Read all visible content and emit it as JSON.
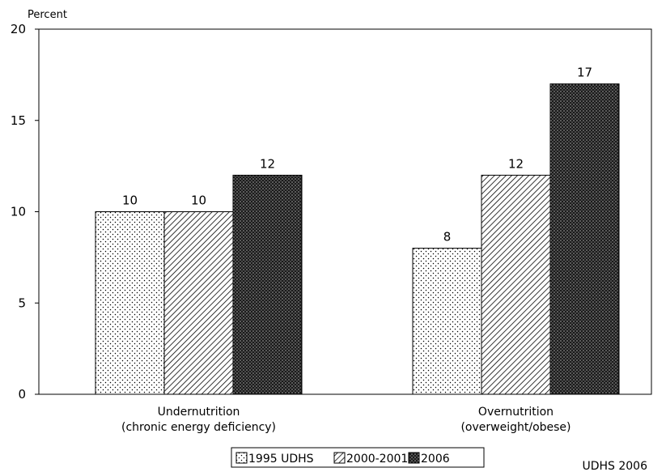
{
  "chart_data": {
    "type": "bar",
    "ylabel": "Percent",
    "ylim": [
      0,
      20
    ],
    "yticks": [
      0,
      5,
      10,
      15,
      20
    ],
    "grid": false,
    "legend_position": "bottom",
    "categories": [
      [
        "Undernutrition",
        "(chronic energy deficiency)"
      ],
      [
        "Overnutrition",
        "(overweight/obese)"
      ]
    ],
    "series": [
      {
        "name": "1995 UDHS",
        "values": [
          10,
          8
        ],
        "pattern": "dots"
      },
      {
        "name": "2000-2001",
        "values": [
          10,
          12
        ],
        "pattern": "hatch"
      },
      {
        "name": "2006",
        "values": [
          12,
          17
        ],
        "pattern": "dense"
      }
    ]
  },
  "source_note": "UDHS 2006"
}
